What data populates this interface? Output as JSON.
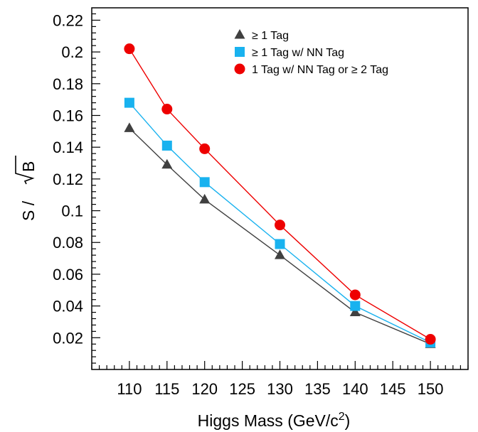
{
  "chart_data": {
    "type": "line",
    "title": "",
    "xlabel": "Higgs Mass (GeV/c",
    "xlabel_sup": "2",
    "xlabel_close": ")",
    "ylabel_prefix": "S / ",
    "ylabel_sqrt_arg": "B",
    "xlim": [
      105,
      155
    ],
    "ylim": [
      0.0,
      0.2278
    ],
    "x_ticks": [
      110,
      115,
      120,
      125,
      130,
      135,
      140,
      145,
      150
    ],
    "y_ticks": [
      0.02,
      0.04,
      0.06,
      0.08,
      0.1,
      0.12,
      0.14,
      0.16,
      0.18,
      0.2,
      0.22
    ],
    "x_tick_labels": [
      "110",
      "115",
      "120",
      "125",
      "130",
      "135",
      "140",
      "145",
      "150"
    ],
    "y_tick_labels": [
      "0.02",
      "0.04",
      "0.06",
      "0.08",
      "0.1",
      "0.12",
      "0.14",
      "0.16",
      "0.18",
      "0.2",
      "0.22"
    ],
    "grid": false,
    "legend_position": "top-right",
    "x": [
      110,
      115,
      120,
      130,
      140,
      150
    ],
    "series": [
      {
        "name": "≥ 1 Tag",
        "marker": "triangle",
        "color": "#404040",
        "line_color": "#404040",
        "values": [
          0.152,
          0.129,
          0.107,
          0.072,
          0.036,
          0.016
        ]
      },
      {
        "name": "≥ 1 Tag w/ NN Tag",
        "marker": "square",
        "color": "#19b2ef",
        "line_color": "#19b2ef",
        "values": [
          0.168,
          0.141,
          0.118,
          0.079,
          0.04,
          0.017
        ]
      },
      {
        "name": "1 Tag w/ NN Tag or ≥ 2 Tag",
        "marker": "circle",
        "color": "#ee0000",
        "line_color": "#ee0000",
        "values": [
          0.202,
          0.164,
          0.139,
          0.091,
          0.047,
          0.019
        ]
      }
    ]
  }
}
